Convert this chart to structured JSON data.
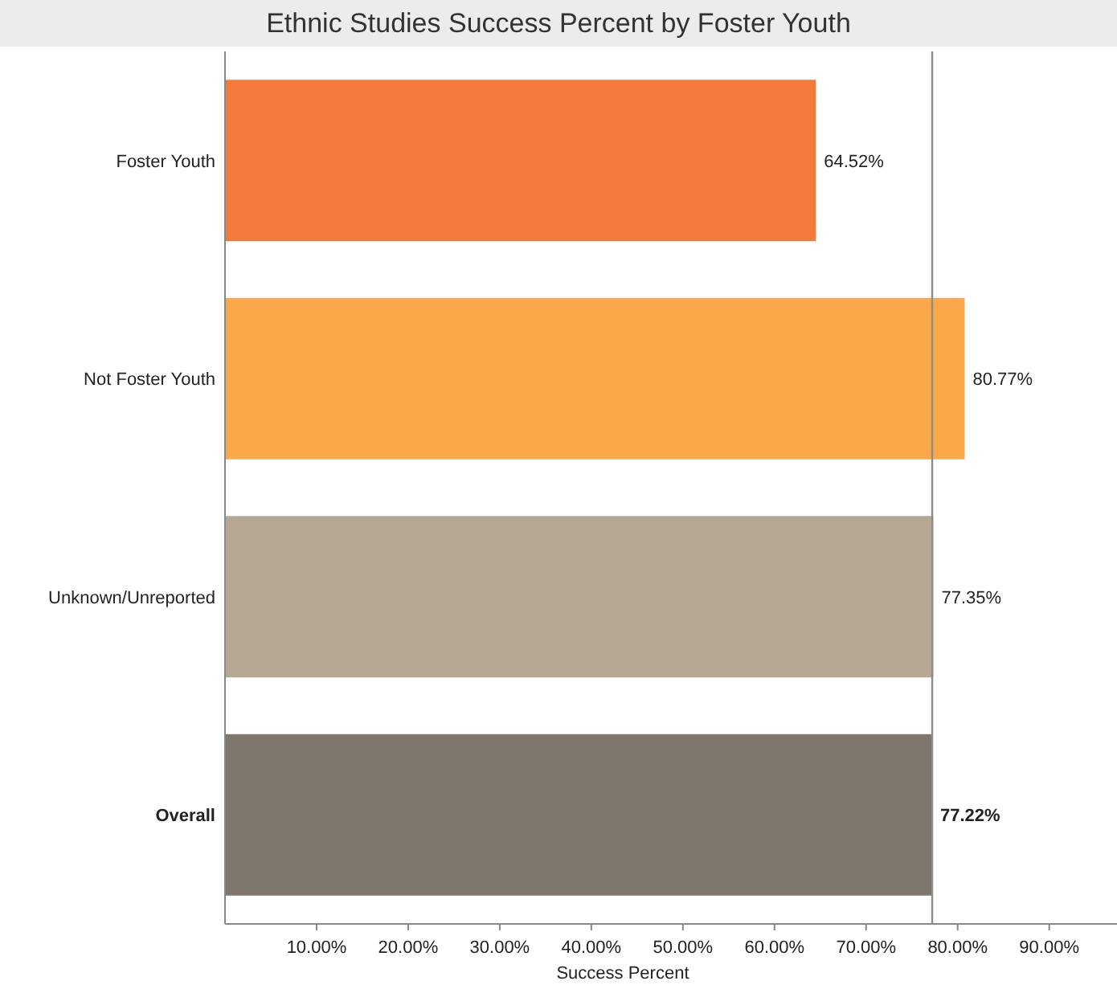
{
  "chart_data": {
    "type": "bar",
    "orientation": "horizontal",
    "title": "Ethnic Studies Success Percent by Foster Youth",
    "xlabel": "Success Percent",
    "categories": [
      "Foster Youth",
      "Not Foster Youth",
      "Unknown/Unreported",
      "Overall"
    ],
    "values": [
      64.52,
      80.77,
      77.35,
      77.22
    ],
    "colors": [
      "#f47a3c",
      "#fba84b",
      "#b5a794",
      "#7f776d"
    ],
    "value_labels": [
      "64.52%",
      "80.77%",
      "77.35%",
      "77.22%"
    ],
    "xlim": [
      0,
      97.4
    ],
    "xticks": [
      {
        "value": 10,
        "label": "10.00%"
      },
      {
        "value": 20,
        "label": "20.00%"
      },
      {
        "value": 30,
        "label": "30.00%"
      },
      {
        "value": 40,
        "label": "40.00%"
      },
      {
        "value": 50,
        "label": "50.00%"
      },
      {
        "value": 60,
        "label": "60.00%"
      },
      {
        "value": 70,
        "label": "70.00%"
      },
      {
        "value": 80,
        "label": "80.00%"
      },
      {
        "value": 90,
        "label": "90.00%"
      }
    ],
    "ref_lines": [
      {
        "axis": "x",
        "value": 77.22,
        "color": "#8c8c8c"
      }
    ],
    "grid": false
  }
}
